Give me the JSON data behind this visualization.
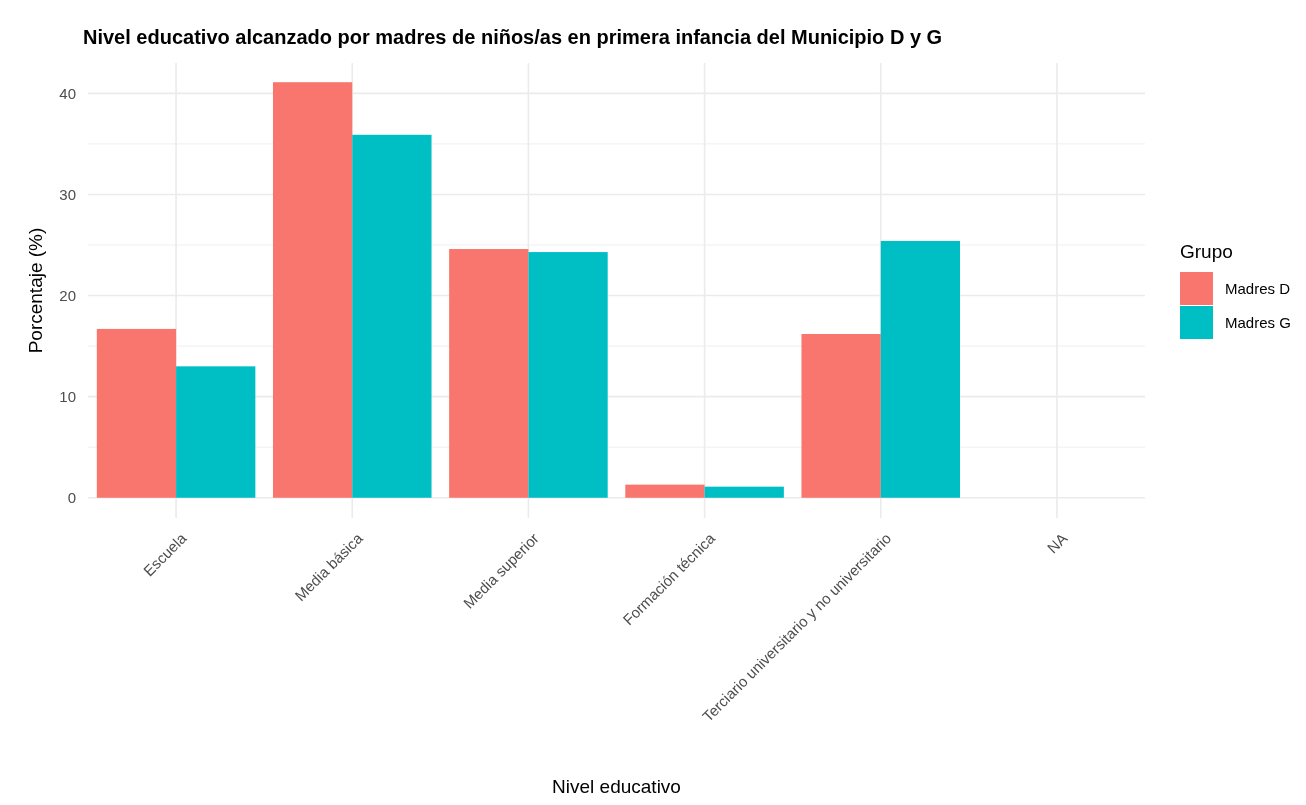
{
  "chart_data": {
    "type": "bar",
    "title": "Nivel educativo alcanzado por madres de niños/as en primera infancia del Municipio D y G",
    "xlabel": "Nivel educativo",
    "ylabel": "Porcentaje (%)",
    "legend_title": "Grupo",
    "categories": [
      "Escuela",
      "Media básica",
      "Media superior",
      "Formación técnica",
      "Terciario universitario y no universitario",
      "NA"
    ],
    "series": [
      {
        "name": "Madres D",
        "color": "#f8766d",
        "values": [
          16.7,
          41.1,
          24.6,
          1.3,
          16.2,
          null
        ]
      },
      {
        "name": "Madres G",
        "color": "#00bfc4",
        "values": [
          13.0,
          35.9,
          24.3,
          1.1,
          25.4,
          null
        ]
      }
    ],
    "ylim": [
      -2,
      43
    ],
    "yticks": [
      0,
      {
        "value": 5,
        "label": null
      },
      10,
      {
        "value": 15,
        "label": null
      },
      20,
      {
        "value": 25,
        "label": null
      },
      30,
      {
        "value": 35,
        "label": null
      },
      40
    ],
    "grid": true,
    "legend": "right"
  }
}
